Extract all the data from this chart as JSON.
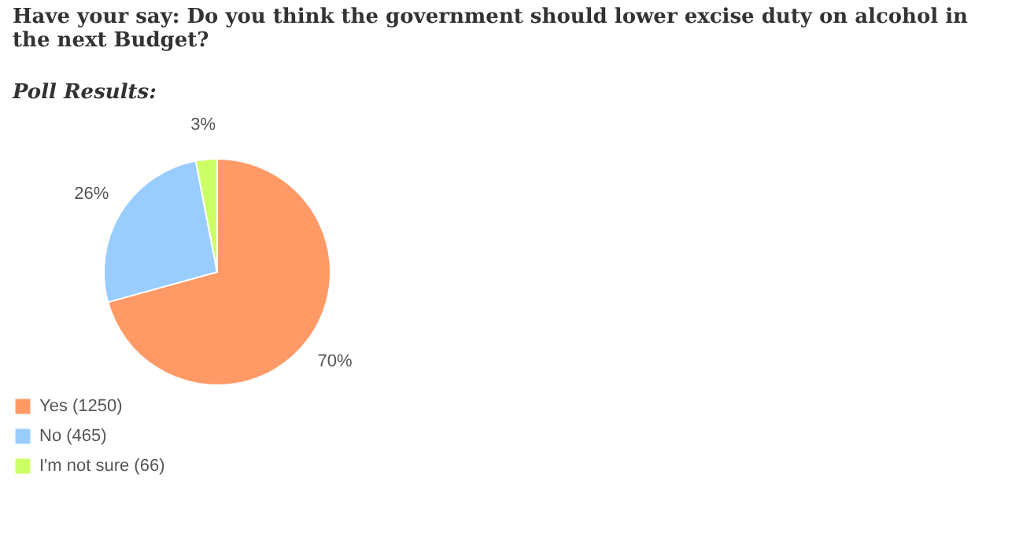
{
  "chart_data": {
    "type": "pie",
    "title": "Have your say: Do you think the government should lower excise duty on alcohol in the next Budget?",
    "subtitle": "Poll Results:",
    "categories": [
      "Yes (1250)",
      "No (465)",
      "I'm not sure (66)"
    ],
    "values": [
      70,
      26,
      3
    ],
    "value_labels": [
      "70%",
      "26%",
      "3%"
    ],
    "colors": [
      "#ff9966",
      "#99ccff",
      "#ccff66"
    ],
    "legend": "bottom"
  }
}
